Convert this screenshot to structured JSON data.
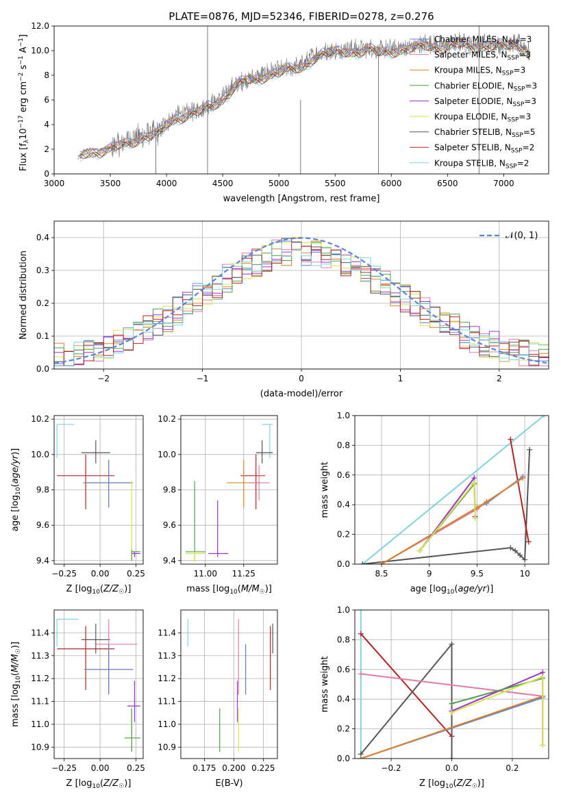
{
  "figure": {
    "title": "PLATE=0876, MJD=52346, FIBERID=0278, z=0.276"
  },
  "colors": {
    "Chabrier MILES": "#5b84d6",
    "Salpeter MILES": "#e27aa8",
    "Kroupa MILES": "#d9822b",
    "Chabrier ELODIE": "#4d9d4d",
    "Salpeter ELODIE": "#9933cc",
    "Kroupa ELODIE": "#d8e64a",
    "Chabrier STELIB": "#555555",
    "Salpeter STELIB": "#b22222",
    "Kroupa STELIB": "#7fd3dc",
    "data": "#777777",
    "gaussian": "#5b84d6"
  },
  "chart_data": [
    {
      "id": "spectrum",
      "type": "line",
      "xlabel": "wavelength [Angstrom, rest frame]",
      "ylabel": "Flux [f_λ10^-17 erg cm^-2 s^-1 A^-1]",
      "xlim": [
        3000,
        7400
      ],
      "ylim": [
        0,
        12
      ],
      "xticks": [
        3000,
        3500,
        4000,
        4500,
        5000,
        5500,
        6000,
        6500,
        7000
      ],
      "yticks": [
        0,
        2,
        4,
        6,
        8,
        10,
        12
      ],
      "grid": false,
      "legend_position": "top-right",
      "legend": [
        {
          "label": "Chabrier MILES, N_SSP=3",
          "key": "Chabrier MILES"
        },
        {
          "label": "Salpeter MILES, N_SSP=3",
          "key": "Salpeter MILES"
        },
        {
          "label": "Kroupa MILES, N_SSP=3",
          "key": "Kroupa MILES"
        },
        {
          "label": "Chabrier ELODIE, N_SSP=3",
          "key": "Chabrier ELODIE"
        },
        {
          "label": "Salpeter ELODIE, N_SSP=3",
          "key": "Salpeter ELODIE"
        },
        {
          "label": "Kroupa ELODIE, N_SSP=3",
          "key": "Kroupa ELODIE"
        },
        {
          "label": "Chabrier STELIB, N_SSP=5",
          "key": "Chabrier STELIB"
        },
        {
          "label": "Salpeter STELIB, N_SSP=2",
          "key": "Salpeter STELIB"
        },
        {
          "label": "Kroupa STELIB, N_SSP=2",
          "key": "Kroupa STELIB"
        }
      ],
      "continuum": [
        [
          3210,
          1.2
        ],
        [
          3250,
          1.8
        ],
        [
          3300,
          2.0
        ],
        [
          3400,
          2.0
        ],
        [
          3500,
          2.1
        ],
        [
          3600,
          2.5
        ],
        [
          3700,
          2.9
        ],
        [
          3800,
          3.2
        ],
        [
          3900,
          3.3
        ],
        [
          3950,
          3.5
        ],
        [
          4000,
          4.2
        ],
        [
          4100,
          4.8
        ],
        [
          4200,
          5.0
        ],
        [
          4300,
          5.2
        ],
        [
          4400,
          5.7
        ],
        [
          4500,
          6.3
        ],
        [
          4600,
          7.2
        ],
        [
          4700,
          7.7
        ],
        [
          4800,
          7.8
        ],
        [
          4900,
          8.3
        ],
        [
          5000,
          8.4
        ],
        [
          5100,
          8.6
        ],
        [
          5200,
          8.8
        ],
        [
          5300,
          9.6
        ],
        [
          5400,
          9.9
        ],
        [
          5500,
          10.0
        ],
        [
          5600,
          10.2
        ],
        [
          5700,
          10.1
        ],
        [
          5800,
          10.2
        ],
        [
          5900,
          10.0
        ],
        [
          6000,
          10.2
        ],
        [
          6100,
          10.3
        ],
        [
          6200,
          10.3
        ],
        [
          6300,
          10.6
        ],
        [
          6400,
          10.5
        ],
        [
          6500,
          10.5
        ],
        [
          6600,
          10.7
        ],
        [
          6700,
          10.5
        ],
        [
          6800,
          10.6
        ],
        [
          6900,
          10.6
        ],
        [
          7000,
          10.5
        ],
        [
          7100,
          10.6
        ],
        [
          7200,
          10.3
        ],
        [
          7230,
          9.8
        ]
      ]
    },
    {
      "id": "residuals",
      "type": "histogram",
      "xlabel": "(data-model)/error",
      "ylabel": "Normed distribution",
      "xlim": [
        -2.5,
        2.5
      ],
      "ylim": [
        0,
        0.45
      ],
      "xticks": [
        -2,
        -1,
        0,
        1,
        2
      ],
      "yticks": [
        0.0,
        0.1,
        0.2,
        0.3,
        0.4
      ],
      "grid": true,
      "legend_position": "top-right",
      "gaussian_label": "𝒩(0, 1)",
      "bin_width": 0.1,
      "base_shape": "gaussian"
    },
    {
      "id": "age_vs_Z",
      "type": "errorbar",
      "xlabel": "Z [log10(Z/Z☉)]",
      "ylabel": "age  [log10(age/yr)]",
      "xlim": [
        -0.32,
        0.3
      ],
      "ylim": [
        9.38,
        10.22
      ],
      "xticks": [
        -0.25,
        0.0,
        0.25
      ],
      "xticklabels": [
        "−0.25",
        "0.00",
        "0.25"
      ],
      "yticks": [
        9.4,
        9.6,
        9.8,
        10.0,
        10.2
      ],
      "grid": true,
      "points": [
        {
          "key": "Kroupa STELIB",
          "x": -0.3,
          "xerr": [
            0,
            0.12
          ],
          "y": 10.17,
          "yerr": [
            0.19,
            0
          ]
        },
        {
          "key": "Chabrier STELIB",
          "x": -0.03,
          "xerr": [
            0.1,
            0.1
          ],
          "y": 10.01,
          "yerr": [
            0.06,
            0.07
          ]
        },
        {
          "key": "Salpeter STELIB",
          "x": -0.1,
          "xerr": [
            0.2,
            0.2
          ],
          "y": 9.88,
          "yerr": [
            0.19,
            0.12
          ]
        },
        {
          "key": "Kroupa MILES",
          "x": 0.06,
          "xerr": [
            0.18,
            0.17
          ],
          "y": 9.84,
          "yerr": [
            0.14,
            0.13
          ]
        },
        {
          "key": "Chabrier MILES",
          "x": 0.06,
          "xerr": [
            0.17,
            0.16
          ],
          "y": 9.84,
          "yerr": [
            0.14,
            0.13
          ]
        },
        {
          "key": "Kroupa ELODIE",
          "x": 0.22,
          "xerr": [
            0,
            0.06
          ],
          "y": 9.45,
          "yerr": [
            0.05,
            0.4
          ]
        },
        {
          "key": "Salpeter ELODIE",
          "x": 0.24,
          "xerr": [
            0.02,
            0.04
          ],
          "y": 9.44,
          "yerr": [
            0.02,
            0.01
          ]
        },
        {
          "key": "Chabrier ELODIE",
          "x": 0.22,
          "xerr": [
            0,
            0.06
          ],
          "y": 9.45,
          "yerr": [
            0.05,
            0.01
          ]
        }
      ]
    },
    {
      "id": "age_vs_mass",
      "type": "errorbar",
      "xlabel": "mass [log10(M/M☉)]",
      "xlim": [
        10.84,
        11.47
      ],
      "ylim": [
        9.38,
        10.22
      ],
      "xticks": [
        11.0,
        11.25
      ],
      "xticklabels": [
        "11.00",
        "11.25"
      ],
      "yticks": [
        9.4,
        9.6,
        9.8,
        10.0,
        10.2
      ],
      "grid": true,
      "points": [
        {
          "key": "Kroupa STELIB",
          "x": 11.42,
          "xerr": [
            0.05,
            0.02
          ],
          "y": 10.17,
          "yerr": [
            0.19,
            0
          ]
        },
        {
          "key": "Chabrier STELIB",
          "x": 11.37,
          "xerr": [
            0.04,
            0.07
          ],
          "y": 10.01,
          "yerr": [
            0.06,
            0.07
          ]
        },
        {
          "key": "Salpeter STELIB",
          "x": 11.33,
          "xerr": [
            0.1,
            0.06
          ],
          "y": 9.88,
          "yerr": [
            0.19,
            0.12
          ]
        },
        {
          "key": "Kroupa MILES",
          "x": 11.25,
          "xerr": [
            0.11,
            0.11
          ],
          "y": 9.84,
          "yerr": [
            0.14,
            0.13
          ]
        },
        {
          "key": "Salpeter MILES",
          "x": 11.35,
          "xerr": [
            0.06,
            0.07
          ],
          "y": 9.84,
          "yerr": [
            0.1,
            0.1
          ]
        },
        {
          "key": "Chabrier ELODIE",
          "x": 10.93,
          "xerr": [
            0.06,
            0.07
          ],
          "y": 9.45,
          "yerr": [
            0.05,
            0.4
          ]
        },
        {
          "key": "Kroupa ELODIE",
          "x": 10.93,
          "xerr": [
            0.06,
            0.07
          ],
          "y": 9.44,
          "yerr": [
            0.05,
            0.01
          ]
        },
        {
          "key": "Salpeter ELODIE",
          "x": 11.08,
          "xerr": [
            0.06,
            0.07
          ],
          "y": 9.44,
          "yerr": [
            0.02,
            0.3
          ]
        }
      ]
    },
    {
      "id": "weight_vs_age",
      "type": "line",
      "xlabel": "age  [log10(age/yr)]",
      "ylabel": "mass weight",
      "xlim": [
        8.22,
        10.25
      ],
      "ylim": [
        0,
        1
      ],
      "xticks": [
        8.5,
        9.0,
        9.5,
        10.0
      ],
      "yticks": [
        0.0,
        0.2,
        0.4,
        0.6,
        0.8,
        1.0
      ],
      "grid": true,
      "series": [
        {
          "key": "Kroupa STELIB",
          "x": [
            8.3,
            10.2
          ],
          "y": [
            0.0,
            1.0
          ]
        },
        {
          "key": "Chabrier STELIB",
          "x": [
            8.3,
            9.85,
            9.9,
            9.95,
            10.0,
            10.05
          ],
          "y": [
            0.0,
            0.11,
            0.09,
            0.06,
            0.03,
            0.77
          ]
        },
        {
          "key": "Salpeter STELIB",
          "x": [
            9.85,
            10.04
          ],
          "y": [
            0.84,
            0.15
          ]
        },
        {
          "key": "Chabrier MILES",
          "x": [
            8.5,
            9.5,
            9.6,
            9.98
          ],
          "y": [
            0.0,
            0.38,
            0.41,
            0.59
          ]
        },
        {
          "key": "Salpeter MILES",
          "x": [
            8.5,
            9.5,
            9.6,
            9.98
          ],
          "y": [
            0.0,
            0.37,
            0.42,
            0.58
          ]
        },
        {
          "key": "Kroupa MILES",
          "x": [
            8.5,
            9.5,
            9.6,
            9.98
          ],
          "y": [
            0.0,
            0.38,
            0.42,
            0.58
          ]
        },
        {
          "key": "Chabrier ELODIE",
          "x": [
            8.9,
            9.47,
            9.48
          ],
          "y": [
            0.09,
            0.54,
            0.31
          ]
        },
        {
          "key": "Salpeter ELODIE",
          "x": [
            8.9,
            9.47,
            9.48
          ],
          "y": [
            0.09,
            0.58,
            0.32
          ]
        },
        {
          "key": "Kroupa ELODIE",
          "x": [
            8.9,
            9.47,
            9.48
          ],
          "y": [
            0.09,
            0.55,
            0.31
          ]
        }
      ]
    },
    {
      "id": "mass_vs_Z",
      "type": "errorbar",
      "xlabel": "Z [log10(Z/Z☉)]",
      "ylabel": "mass [log10(M/M☉)]",
      "xlim": [
        -0.32,
        0.3
      ],
      "ylim": [
        10.85,
        11.5
      ],
      "xticks": [
        -0.25,
        0.0,
        0.25
      ],
      "xticklabels": [
        "−0.25",
        "0.00",
        "0.25"
      ],
      "yticks": [
        10.9,
        11.0,
        11.1,
        11.2,
        11.3,
        11.4
      ],
      "grid": true,
      "points": [
        {
          "key": "Kroupa STELIB",
          "x": -0.3,
          "xerr": [
            0,
            0.15
          ],
          "y": 11.46,
          "yerr": [
            0.12,
            0
          ]
        },
        {
          "key": "Chabrier STELIB",
          "x": -0.03,
          "xerr": [
            0.1,
            0.1
          ],
          "y": 11.37,
          "yerr": [
            0.06,
            0.07
          ]
        },
        {
          "key": "Salpeter STELIB",
          "x": -0.1,
          "xerr": [
            0.2,
            0.2
          ],
          "y": 11.33,
          "yerr": [
            0.18,
            0.1
          ]
        },
        {
          "key": "Salpeter MILES",
          "x": 0.06,
          "xerr": [
            0.1,
            0.2
          ],
          "y": 11.35,
          "yerr": [
            0.22,
            0.11
          ]
        },
        {
          "key": "Kroupa MILES",
          "x": 0.06,
          "xerr": [
            0.17,
            0.17
          ],
          "y": 11.24,
          "yerr": [
            0.11,
            0.11
          ]
        },
        {
          "key": "Chabrier MILES",
          "x": 0.06,
          "xerr": [
            0.17,
            0.17
          ],
          "y": 11.24,
          "yerr": [
            0.11,
            0.11
          ]
        },
        {
          "key": "Salpeter ELODIE",
          "x": 0.24,
          "xerr": [
            0.05,
            0.04
          ],
          "y": 11.08,
          "yerr": [
            0.07,
            0.11
          ]
        },
        {
          "key": "Kroupa ELODIE",
          "x": 0.22,
          "xerr": [
            0.05,
            0.06
          ],
          "y": 10.94,
          "yerr": [
            0.06,
            0.13
          ]
        },
        {
          "key": "Chabrier ELODIE",
          "x": 0.22,
          "xerr": [
            0.05,
            0.06
          ],
          "y": 10.94,
          "yerr": [
            0.06,
            0.13
          ]
        }
      ]
    },
    {
      "id": "mass_vs_ebv",
      "type": "errorbar",
      "xlabel": "E(B-V)",
      "xlim": [
        0.155,
        0.237
      ],
      "ylim": [
        10.85,
        11.5
      ],
      "xticks": [
        0.175,
        0.2,
        0.225
      ],
      "xticklabels": [
        "0.175",
        "0.200",
        "0.225"
      ],
      "yticks": [
        10.9,
        11.0,
        11.1,
        11.2,
        11.3,
        11.4
      ],
      "grid": true,
      "points": [
        {
          "key": "Kroupa STELIB",
          "x": 0.161,
          "y": 11.46,
          "yerr": [
            0.12,
            0
          ]
        },
        {
          "key": "Chabrier ELODIE",
          "x": 0.188,
          "y": 10.94,
          "yerr": [
            0.06,
            0.13
          ]
        },
        {
          "key": "Salpeter ELODIE",
          "x": 0.203,
          "y": 11.08,
          "yerr": [
            0.07,
            0.11
          ]
        },
        {
          "key": "Salpeter MILES",
          "x": 0.204,
          "y": 11.35,
          "yerr": [
            0.22,
            0.11
          ]
        },
        {
          "key": "Kroupa ELODIE",
          "x": 0.204,
          "y": 10.94,
          "yerr": [
            0.06,
            0.13
          ]
        },
        {
          "key": "Kroupa MILES",
          "x": 0.21,
          "y": 11.24,
          "yerr": [
            0.11,
            0.11
          ]
        },
        {
          "key": "Chabrier MILES",
          "x": 0.21,
          "y": 11.24,
          "yerr": [
            0.11,
            0.11
          ]
        },
        {
          "key": "Salpeter STELIB",
          "x": 0.231,
          "y": 11.33,
          "yerr": [
            0.18,
            0.1
          ]
        },
        {
          "key": "Chabrier STELIB",
          "x": 0.233,
          "y": 11.37,
          "yerr": [
            0.06,
            0.07
          ]
        }
      ]
    },
    {
      "id": "weight_vs_Z",
      "type": "line",
      "xlabel": "Z [log10(Z/Z☉)]",
      "ylabel": "mass weight",
      "xlim": [
        -0.32,
        0.32
      ],
      "ylim": [
        0,
        1
      ],
      "xticks": [
        -0.2,
        0.0,
        0.2
      ],
      "xticklabels": [
        "−0.2",
        "0.0",
        "0.2"
      ],
      "yticks": [
        0.0,
        0.2,
        0.4,
        0.6,
        0.8,
        1.0
      ],
      "grid": true,
      "series": [
        {
          "key": "Kroupa STELIB",
          "x": [
            -0.3,
            -0.3
          ],
          "y": [
            0.0,
            1.0
          ]
        },
        {
          "key": "Salpeter STELIB",
          "x": [
            -0.3,
            0.0
          ],
          "y": [
            0.84,
            0.15
          ]
        },
        {
          "key": "Chabrier STELIB",
          "x": [
            -0.3,
            0.0,
            0.0
          ],
          "y": [
            0.03,
            0.77,
            0.0
          ]
        },
        {
          "key": "Salpeter MILES",
          "x": [
            -0.3,
            0.3
          ],
          "y": [
            0.57,
            0.42
          ]
        },
        {
          "key": "Chabrier MILES",
          "x": [
            -0.3,
            0.3
          ],
          "y": [
            0.0,
            0.41
          ]
        },
        {
          "key": "Kroupa MILES",
          "x": [
            -0.3,
            0.3
          ],
          "y": [
            0.0,
            0.42
          ]
        },
        {
          "key": "Salpeter ELODIE",
          "x": [
            0.0,
            0.3,
            0.3
          ],
          "y": [
            0.32,
            0.58,
            0.09
          ]
        },
        {
          "key": "Chabrier ELODIE",
          "x": [
            0.0,
            0.3
          ],
          "y": [
            0.37,
            0.54
          ]
        },
        {
          "key": "Kroupa ELODIE",
          "x": [
            0.0,
            0.3,
            0.3
          ],
          "y": [
            0.31,
            0.55,
            0.09
          ]
        }
      ]
    }
  ]
}
